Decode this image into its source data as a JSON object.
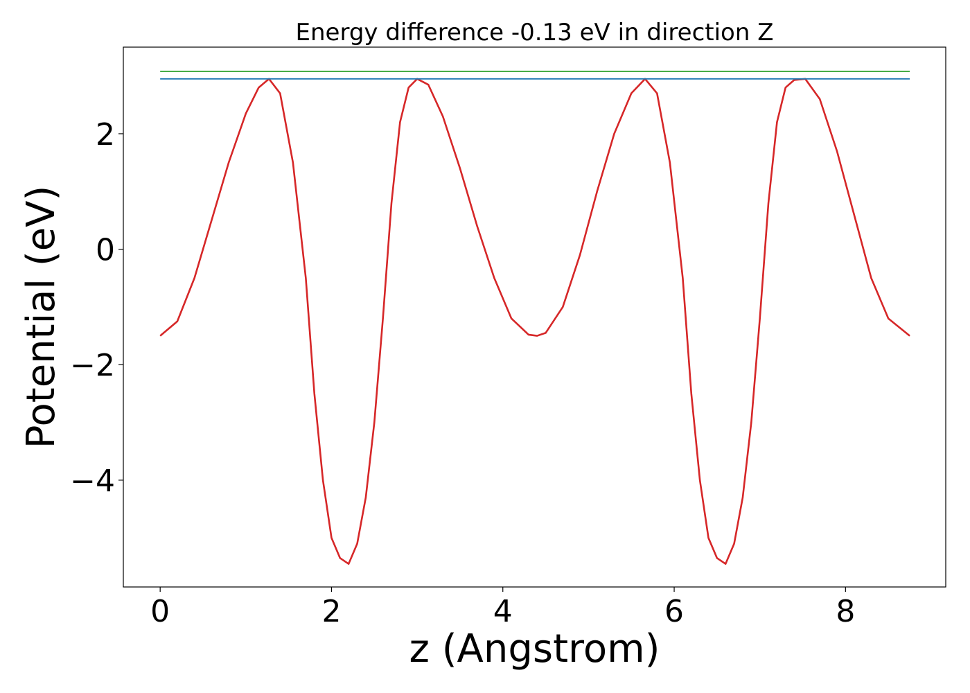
{
  "chart_data": {
    "type": "line",
    "title": "Energy difference -0.13 eV in direction Z",
    "xlabel": "z (Angstrom)",
    "ylabel": "Potential (eV)",
    "xlim": [
      -0.43,
      9.17
    ],
    "ylim": [
      -5.85,
      3.5
    ],
    "xticks": [
      0,
      2,
      4,
      6,
      8
    ],
    "xtick_labels": [
      "0",
      "2",
      "4",
      "6",
      "8"
    ],
    "yticks": [
      -4,
      -2,
      0,
      2
    ],
    "ytick_labels": [
      "−4",
      "−2",
      "0",
      "2"
    ],
    "grid": false,
    "series": [
      {
        "color": "#d62728",
        "x": [
          0.0,
          0.2,
          0.4,
          0.6,
          0.8,
          1.0,
          1.15,
          1.27,
          1.4,
          1.55,
          1.7,
          1.8,
          1.9,
          2.0,
          2.1,
          2.2,
          2.3,
          2.4,
          2.5,
          2.6,
          2.7,
          2.8,
          2.9,
          3.0,
          3.13,
          3.3,
          3.5,
          3.7,
          3.9,
          4.1,
          4.3,
          4.4,
          4.5,
          4.7,
          4.9,
          5.1,
          5.3,
          5.5,
          5.66,
          5.8,
          5.95,
          6.1,
          6.2,
          6.3,
          6.4,
          6.5,
          6.6,
          6.7,
          6.8,
          6.9,
          7.0,
          7.1,
          7.2,
          7.3,
          7.4,
          7.53,
          7.7,
          7.9,
          8.1,
          8.3,
          8.5,
          8.75
        ],
        "y": [
          -1.5,
          -1.25,
          -0.5,
          0.5,
          1.5,
          2.35,
          2.8,
          2.95,
          2.7,
          1.5,
          -0.5,
          -2.5,
          -4.0,
          -5.0,
          -5.35,
          -5.45,
          -5.1,
          -4.3,
          -3.0,
          -1.2,
          0.8,
          2.2,
          2.8,
          2.95,
          2.85,
          2.3,
          1.4,
          0.4,
          -0.5,
          -1.2,
          -1.48,
          -1.5,
          -1.45,
          -1.0,
          -0.1,
          1.0,
          2.0,
          2.7,
          2.95,
          2.7,
          1.5,
          -0.5,
          -2.5,
          -4.0,
          -5.0,
          -5.35,
          -5.45,
          -5.1,
          -4.3,
          -3.0,
          -1.2,
          0.8,
          2.2,
          2.8,
          2.93,
          2.95,
          2.6,
          1.7,
          0.6,
          -0.5,
          -1.2,
          -1.5
        ]
      },
      {
        "color": "#1f77b4",
        "x": [
          0.0,
          8.75
        ],
        "y": [
          2.95,
          2.95
        ]
      },
      {
        "color": "#2ca02c",
        "x": [
          0.0,
          8.75
        ],
        "y": [
          3.08,
          3.08
        ]
      }
    ]
  }
}
